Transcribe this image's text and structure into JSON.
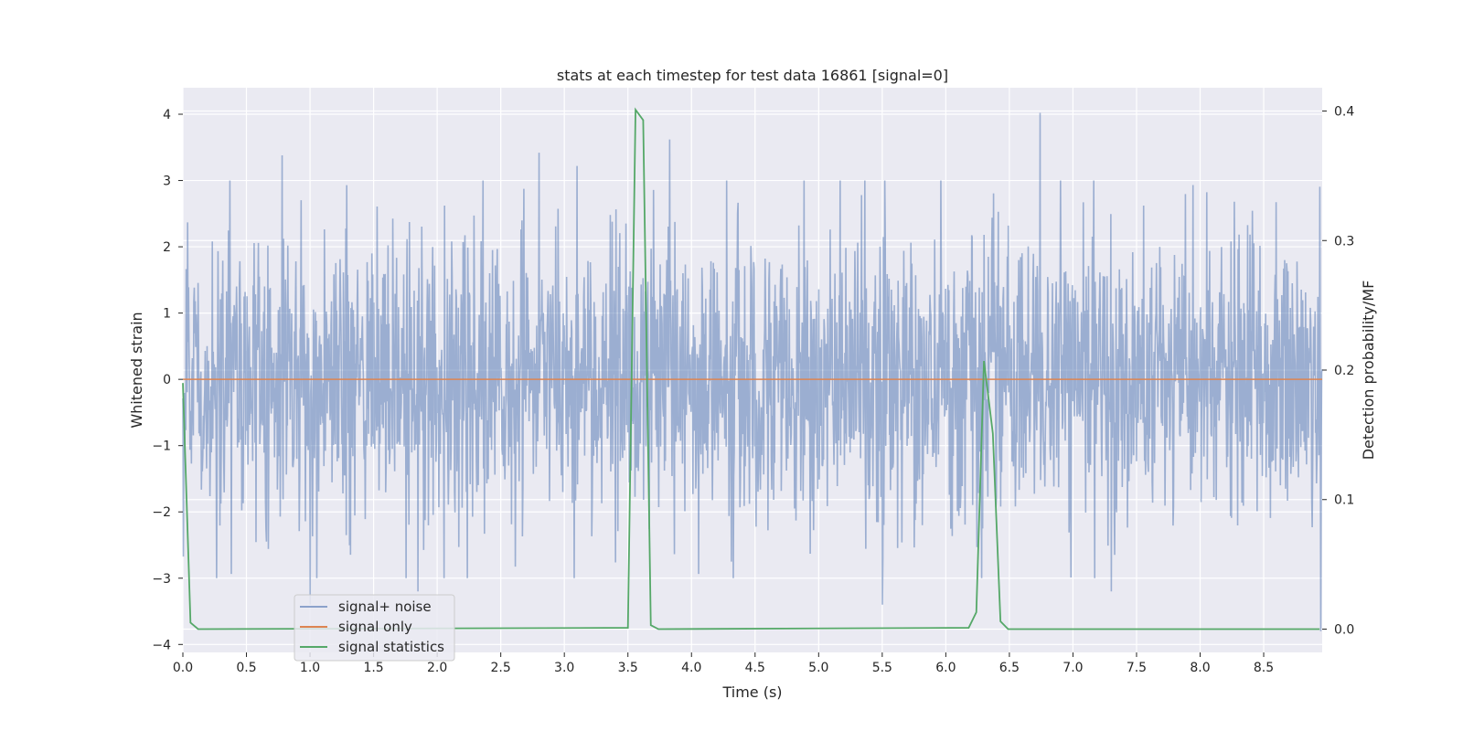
{
  "chart_data": {
    "type": "line",
    "title": "stats at each timestep for test data 16861 [signal=0]",
    "xlabel": "Time (s)",
    "ylabel_left": "Whitened strain",
    "ylabel_right": "Detection probability/MF",
    "xlim": [
      0.0,
      8.96
    ],
    "ylim_left": [
      -4.12,
      4.4
    ],
    "ylim_right": [
      -0.018,
      0.418
    ],
    "x_ticks": [
      "0.0",
      "0.5",
      "1.0",
      "1.5",
      "2.0",
      "2.5",
      "3.0",
      "3.5",
      "4.0",
      "4.5",
      "5.0",
      "5.5",
      "6.0",
      "6.5",
      "7.0",
      "7.5",
      "8.0",
      "8.5"
    ],
    "y_ticks_left": [
      "4",
      "3",
      "2",
      "1",
      "0",
      "−1",
      "−2",
      "−3",
      "−4"
    ],
    "y_ticks_right": [
      "0.4",
      "0.3",
      "0.2",
      "0.1",
      "0.0"
    ],
    "grid": true,
    "legend_position": "lower-left",
    "colors": {
      "plot_background": "#eaeaf2",
      "grid": "#ffffff",
      "signal_noise": "#4c72b0",
      "signal_only": "#dd8452",
      "signal_statistics": "#55a868"
    },
    "series": [
      {
        "name": "signal+ noise",
        "axis": "left",
        "description_values": "whitened strain noise, approx. range -3.8 to 4.0",
        "peaks": [
          {
            "x": 0.78,
            "y": 3.38
          },
          {
            "x": 2.8,
            "y": 3.42
          },
          {
            "x": 3.1,
            "y": 3.22
          },
          {
            "x": 3.83,
            "y": 3.62
          },
          {
            "x": 6.74,
            "y": 4.02
          },
          {
            "x": 1.0,
            "y": -3.4
          },
          {
            "x": 1.85,
            "y": -3.2
          },
          {
            "x": 5.5,
            "y": -3.4
          },
          {
            "x": 7.3,
            "y": -3.2
          },
          {
            "x": 8.95,
            "y": -3.8
          }
        ]
      },
      {
        "name": "signal only",
        "axis": "left",
        "x": [
          0.0,
          8.96
        ],
        "y": [
          0.0,
          0.0
        ]
      },
      {
        "name": "signal statistics",
        "axis": "right",
        "x": [
          0.0,
          0.06,
          0.12,
          3.5,
          3.56,
          3.62,
          3.68,
          3.74,
          6.18,
          6.24,
          6.3,
          6.37,
          6.43,
          6.49,
          8.94
        ],
        "y": [
          0.19,
          0.005,
          0.0,
          0.001,
          0.401,
          0.393,
          0.003,
          0.0,
          0.001,
          0.013,
          0.207,
          0.151,
          0.006,
          0.0,
          0.0
        ]
      }
    ]
  }
}
